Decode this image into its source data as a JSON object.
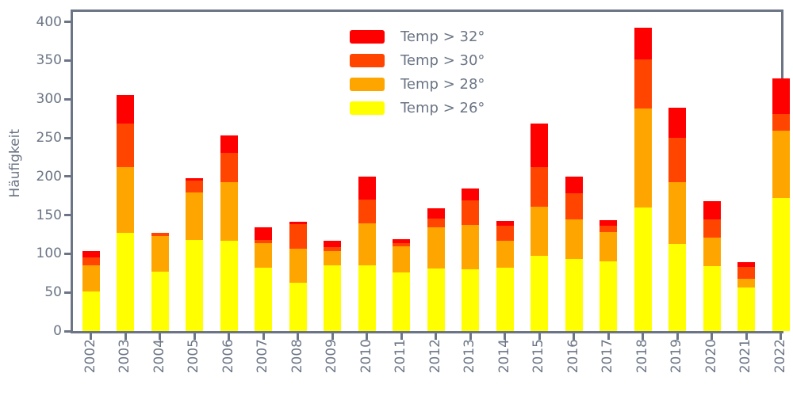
{
  "colors": {
    "text": "#6b7585",
    "spine": "#6b7585",
    "background": "#ffffff"
  },
  "chart_data": {
    "type": "bar",
    "stacked": true,
    "title": "",
    "xlabel": "",
    "ylabel": "Häufigkeit",
    "grid": false,
    "legend_position": "upper center, inside plot, no frame",
    "ylim": [
      0,
      413
    ],
    "yticks": [
      0,
      50,
      100,
      150,
      200,
      250,
      300,
      350,
      400
    ],
    "categories": [
      "2002",
      "2003",
      "2004",
      "2005",
      "2006",
      "2007",
      "2008",
      "2009",
      "2010",
      "2011",
      "2012",
      "2013",
      "2014",
      "2015",
      "2016",
      "2017",
      "2018",
      "2019",
      "2020",
      "2021",
      "2022"
    ],
    "series": [
      {
        "name": "Temp > 26°",
        "color": "#ffff00",
        "values": [
          51,
          127,
          77,
          118,
          117,
          82,
          63,
          85,
          85,
          76,
          81,
          80,
          82,
          97,
          93,
          90,
          160,
          113,
          84,
          56,
          172
        ]
      },
      {
        "name": "Temp > 28°",
        "color": "#ffa500",
        "values": [
          34,
          85,
          46,
          61,
          76,
          32,
          44,
          19,
          54,
          34,
          53,
          57,
          35,
          64,
          51,
          38,
          128,
          80,
          37,
          12,
          87
        ]
      },
      {
        "name": "Temp > 30°",
        "color": "#ff4500",
        "values": [
          10,
          56,
          4,
          16,
          38,
          4,
          31,
          5,
          31,
          4,
          12,
          32,
          19,
          51,
          34,
          8,
          64,
          57,
          24,
          15,
          22
        ]
      },
      {
        "name": "Temp > 32°",
        "color": "#ff0000",
        "values": [
          8,
          37,
          0,
          3,
          22,
          16,
          3,
          8,
          30,
          5,
          13,
          15,
          6,
          56,
          22,
          7,
          41,
          39,
          23,
          6,
          46
        ]
      }
    ],
    "totals": [
      103,
      305,
      127,
      198,
      253,
      134,
      141,
      117,
      200,
      119,
      159,
      184,
      142,
      268,
      200,
      143,
      393,
      289,
      168,
      89,
      327
    ]
  }
}
